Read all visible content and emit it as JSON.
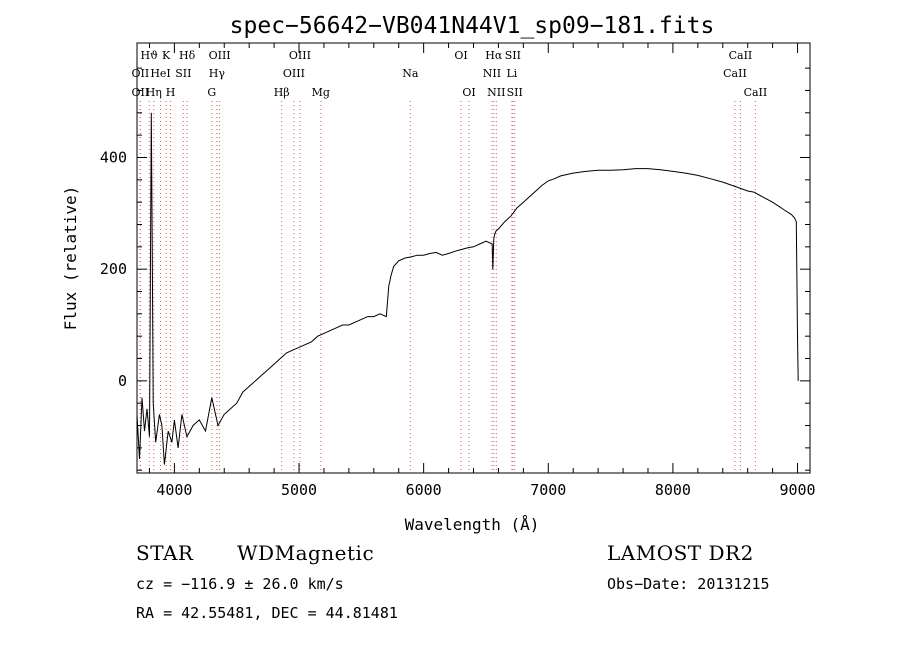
{
  "chart_data": {
    "type": "line",
    "title": "spec−56642−VB041N44V1_sp09−181.fits",
    "xlabel": "Wavelength (Å)",
    "ylabel": "Flux (relative)",
    "xlim": [
      3700,
      9100
    ],
    "ylim": [
      -165,
      605
    ],
    "x_ticks": [
      4000,
      5000,
      6000,
      7000,
      8000,
      9000
    ],
    "x_tick_labels": [
      "4000",
      "5000",
      "6000",
      "7000",
      "8000",
      "9000"
    ],
    "y_ticks": [
      0,
      200,
      400
    ],
    "y_tick_labels": [
      "0",
      "200",
      "400"
    ],
    "grid": false,
    "series": [
      {
        "x": [
          3700,
          3720,
          3740,
          3760,
          3780,
          3800,
          3815,
          3822,
          3830,
          3850,
          3880,
          3900,
          3920,
          3950,
          3980,
          4000,
          4030,
          4060,
          4100,
          4150,
          4200,
          4250,
          4300,
          4350,
          4400,
          4450,
          4500,
          4550,
          4600,
          4650,
          4700,
          4750,
          4800,
          4850,
          4900,
          4950,
          5000,
          5050,
          5100,
          5150,
          5200,
          5250,
          5300,
          5350,
          5400,
          5450,
          5500,
          5550,
          5600,
          5650,
          5700,
          5720,
          5740,
          5760,
          5800,
          5850,
          5900,
          5950,
          6000,
          6050,
          6100,
          6150,
          6200,
          6250,
          6300,
          6350,
          6400,
          6450,
          6500,
          6550,
          6555,
          6563,
          6570,
          6580,
          6600,
          6650,
          6700,
          6750,
          6800,
          6850,
          6900,
          6950,
          7000,
          7050,
          7100,
          7200,
          7300,
          7400,
          7500,
          7600,
          7700,
          7800,
          7900,
          8000,
          8100,
          8200,
          8300,
          8400,
          8500,
          8600,
          8650,
          8700,
          8800,
          8900,
          8950,
          8975,
          8990,
          9000,
          9005
        ],
        "y": [
          -60,
          -140,
          -30,
          -90,
          -50,
          -100,
          480,
          250,
          -40,
          -110,
          -60,
          -80,
          -150,
          -90,
          -110,
          -70,
          -120,
          -60,
          -100,
          -80,
          -70,
          -90,
          -30,
          -80,
          -60,
          -50,
          -40,
          -20,
          -10,
          0,
          10,
          20,
          30,
          40,
          50,
          55,
          60,
          65,
          70,
          80,
          85,
          90,
          95,
          100,
          100,
          105,
          110,
          115,
          115,
          120,
          115,
          170,
          190,
          205,
          215,
          220,
          222,
          225,
          225,
          228,
          230,
          225,
          228,
          232,
          235,
          238,
          240,
          245,
          250,
          245,
          200,
          255,
          262,
          268,
          272,
          285,
          295,
          310,
          320,
          330,
          340,
          350,
          358,
          362,
          367,
          372,
          375,
          377,
          377,
          378,
          380,
          380,
          378,
          375,
          372,
          368,
          362,
          356,
          348,
          340,
          338,
          332,
          320,
          305,
          298,
          292,
          285,
          80,
          0
        ],
        "color": "#000000"
      }
    ],
    "line_markers": {
      "row1": [
        "Hϑ",
        "K",
        "Hδ",
        "OIII",
        "OIII",
        "OI",
        "Hα",
        "SII",
        "CaII"
      ],
      "row2": [
        "OII",
        "HeI",
        "SII",
        "Hγ",
        "OIII",
        "Na",
        "NII",
        "Li",
        "CaII"
      ],
      "row3": [
        "OII",
        "Hη",
        "H",
        "G",
        "Hβ",
        "Mg",
        "OI",
        "NII",
        "SII",
        "CaII"
      ],
      "markers": [
        {
          "wl": 3727,
          "label": "OII",
          "row": 2
        },
        {
          "wl": 3727,
          "label": "OII",
          "row": 3
        },
        {
          "wl": 3798,
          "label": "Hϑ",
          "row": 1
        },
        {
          "wl": 3835,
          "label": "Hη",
          "row": 3
        },
        {
          "wl": 3889,
          "label": "HeI",
          "row": 2
        },
        {
          "wl": 3934,
          "label": "K",
          "row": 1
        },
        {
          "wl": 3969,
          "label": "H",
          "row": 3
        },
        {
          "wl": 4072,
          "label": "SII",
          "row": 2
        },
        {
          "wl": 4102,
          "label": "Hδ",
          "row": 1
        },
        {
          "wl": 4300,
          "label": "G",
          "row": 3
        },
        {
          "wl": 4341,
          "label": "Hγ",
          "row": 2
        },
        {
          "wl": 4363,
          "label": "OIII",
          "row": 1
        },
        {
          "wl": 4861,
          "label": "Hβ",
          "row": 3
        },
        {
          "wl": 4959,
          "label": "OIII",
          "row": 2
        },
        {
          "wl": 5007,
          "label": "OIII",
          "row": 1
        },
        {
          "wl": 5175,
          "label": "Mg",
          "row": 3
        },
        {
          "wl": 5893,
          "label": "Na",
          "row": 2
        },
        {
          "wl": 6300,
          "label": "OI",
          "row": 1
        },
        {
          "wl": 6364,
          "label": "OI",
          "row": 3
        },
        {
          "wl": 6548,
          "label": "NII",
          "row": 2
        },
        {
          "wl": 6563,
          "label": "Hα",
          "row": 1
        },
        {
          "wl": 6583,
          "label": "NII",
          "row": 3
        },
        {
          "wl": 6708,
          "label": "Li",
          "row": 2
        },
        {
          "wl": 6716,
          "label": "SII",
          "row": 1
        },
        {
          "wl": 6731,
          "label": "SII",
          "row": 3
        },
        {
          "wl": 8498,
          "label": "CaII",
          "row": 2
        },
        {
          "wl": 8542,
          "label": "CaII",
          "row": 1
        },
        {
          "wl": 8662,
          "label": "CaII",
          "row": 3
        }
      ]
    }
  },
  "info": {
    "class": "STAR",
    "subclass": "WDMagnetic",
    "survey": "LAMOST DR2",
    "cz": "cz = −116.9 ± 26.0 km/s",
    "obs_date": "Obs−Date: 20131215",
    "radec": "RA =  42.55481, DEC =  44.81481"
  }
}
